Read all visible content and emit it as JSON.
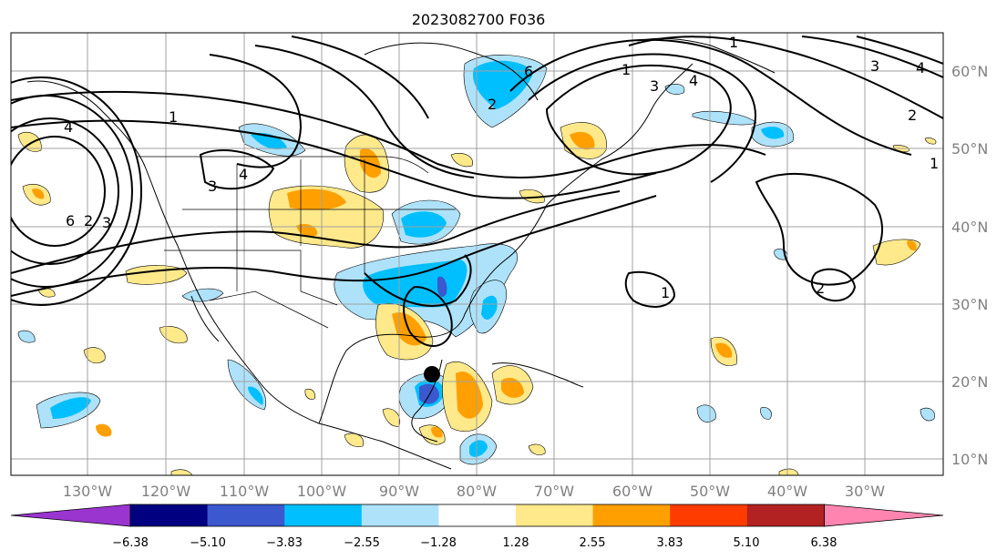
{
  "title": "2023082700 F036",
  "map": {
    "lon_labels": [
      "130°W",
      "120°W",
      "110°W",
      "100°W",
      "90°W",
      "80°W",
      "70°W",
      "60°W",
      "50°W",
      "40°W",
      "30°W"
    ],
    "lat_labels": [
      "60°N",
      "50°N",
      "40°N",
      "30°N",
      "20°N",
      "10°N"
    ],
    "contour_labels": [
      "1",
      "2",
      "3",
      "4",
      "6",
      "1",
      "2",
      "3",
      "4",
      "6",
      "1",
      "2",
      "3",
      "4",
      "1",
      "2",
      "1",
      "4",
      "3"
    ],
    "colors": {
      "grid": "#a0a0a0",
      "coast": "#000000",
      "contour": "#000000",
      "label": "#808080",
      "storm_center": "#000000"
    }
  },
  "colorbar": {
    "tick_labels": [
      "−6.38",
      "−5.10",
      "−3.83",
      "−2.55",
      "−1.28",
      "1.28",
      "2.55",
      "3.83",
      "5.10",
      "6.38"
    ],
    "colors": [
      "#9a35d0",
      "#000080",
      "#3b58cf",
      "#00bfff",
      "#aee2fa",
      "#ffffff",
      "#ffe98a",
      "#ffa000",
      "#ff3c00",
      "#b22222",
      "#ff85b0"
    ]
  }
}
